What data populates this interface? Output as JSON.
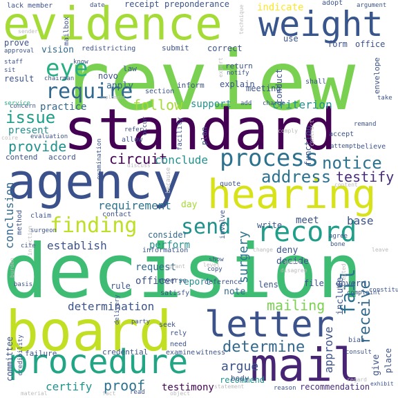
{
  "palette": {
    "dark_purple": "#440154",
    "purple": "#472c7a",
    "indigo": "#3b518b",
    "blue": "#2c728e",
    "teal": "#21918c",
    "green": "#28ae80",
    "bright_green": "#5ec962",
    "lime": "#addc30",
    "yellow": "#fde725",
    "grey": "#bbbbbb"
  },
  "words": {
    "review": "review",
    "standard": "standard",
    "decision": "decision",
    "evidence": "evidence",
    "board": "board",
    "agency": "agency",
    "hearing": "hearing",
    "weight": "weight",
    "procedure": "procedure",
    "mail": "mail",
    "letter": "letter",
    "process": "process",
    "record": "record",
    "finding": "finding",
    "send": "send",
    "require": "require",
    "eye": "eye",
    "issue": "issue",
    "address": "address",
    "notice": "notice",
    "determine": "determine",
    "testify": "testify",
    "provide": "provide",
    "follow": "follow",
    "fail": "fail",
    "receive": "receive",
    "surgery": "surgery",
    "circuit": "circuit",
    "conclude": "conclude",
    "requirement": "requirement",
    "mailing": "mailing",
    "determination": "determination",
    "proof": "proof",
    "certify": "certify",
    "testimony": "testimony",
    "recommend": "recommend",
    "recommendation": "recommendation",
    "argue": "argue",
    "establish": "establish",
    "perform": "perform",
    "request": "request",
    "officer": "officer",
    "report": "report",
    "conclusion": "conclusion",
    "criterion": "criterion",
    "support": "support",
    "practice": "practice",
    "present": "present",
    "meet": "meet",
    "base": "base",
    "include": "include",
    "approve": "approve",
    "give": "give",
    "place": "place",
    "note": "note",
    "lens": "lens",
    "write": "write",
    "consider": "consider",
    "rule": "rule",
    "day": "day",
    "vision": "vision",
    "correct": "correct",
    "submit": "submit",
    "office": "office",
    "form": "form",
    "use": "use",
    "prove": "prove",
    "indicate": "indicate",
    "adopt": "adopt",
    "receipt": "receipt",
    "preponderance": "preponderance",
    "date": "date",
    "member": "member",
    "lack": "lack",
    "mailbox": "mailbox",
    "argument": "argument",
    "redistricting": "redistricting",
    "approval": "approval",
    "staff": "staff",
    "result": "result",
    "apply": "apply",
    "novo": "novo",
    "law": "law",
    "inform": "inform",
    "explain": "explain",
    "meeting": "meeting",
    "conduct": "conduct",
    "envelope": "envelope",
    "concern": "concern",
    "evaluation": "evaluation",
    "contend": "contend",
    "accord": "accord",
    "allow": "allow",
    "refer": "refer",
    "occur": "occur",
    "facility": "facility",
    "plan": "plan",
    "function": "function",
    "accept": "accept",
    "believe": "believe",
    "contact": "contact",
    "quote": "quote",
    "deny": "deny",
    "decide": "decide",
    "file": "file",
    "govern": "govern",
    "complaint": "complaint",
    "constitute": "constitute",
    "deference": "deference",
    "reverse": "reverse",
    "satisfy": "satisfy",
    "party": "party",
    "rely": "rely",
    "seek": "seek",
    "need": "need",
    "body": "body",
    "examine": "examine",
    "witness": "witness",
    "credential": "credential",
    "committee": "committee",
    "failure": "failure",
    "copy": "copy",
    "show": "show",
    "information": "information",
    "basis": "basis",
    "method": "method",
    "claim": "claim",
    "agree": "agree",
    "bone": "bone",
    "involve": "involve",
    "cite": "cite",
    "surgeon": "surgeon",
    "return": "return",
    "notify": "notify",
    "charge": "charge",
    "add": "add",
    "take": "take",
    "attempt": "attempt",
    "shall": "shall",
    "chairman": "chairman",
    "section": "section",
    "service": "service",
    "know": "know",
    "examination": "examination",
    "because": "because",
    "grant": "grant",
    "level": "level",
    "delivery": "delivery",
    "change": "change",
    "point": "point",
    "disagree": "disagree",
    "leave": "leave",
    "bias": "bias",
    "consult": "consult",
    "exhibit": "exhibit",
    "regard": "regard",
    "statement": "statement",
    "reason": "reason",
    "material": "material",
    "fact": "fact",
    "read": "read",
    "object": "object",
    "accepted": "accepted",
    "injection": "injection",
    "credibility": "credibility",
    "burden": "burden",
    "discuss": "discuss",
    "technique": "technique",
    "sender": "sender",
    "sit": "sit",
    "coire": "coire",
    "content": "content",
    "remand": "remand",
    "comply": "comply",
    "contract": "contract",
    "implement": "implement",
    "expert": "expert"
  }
}
